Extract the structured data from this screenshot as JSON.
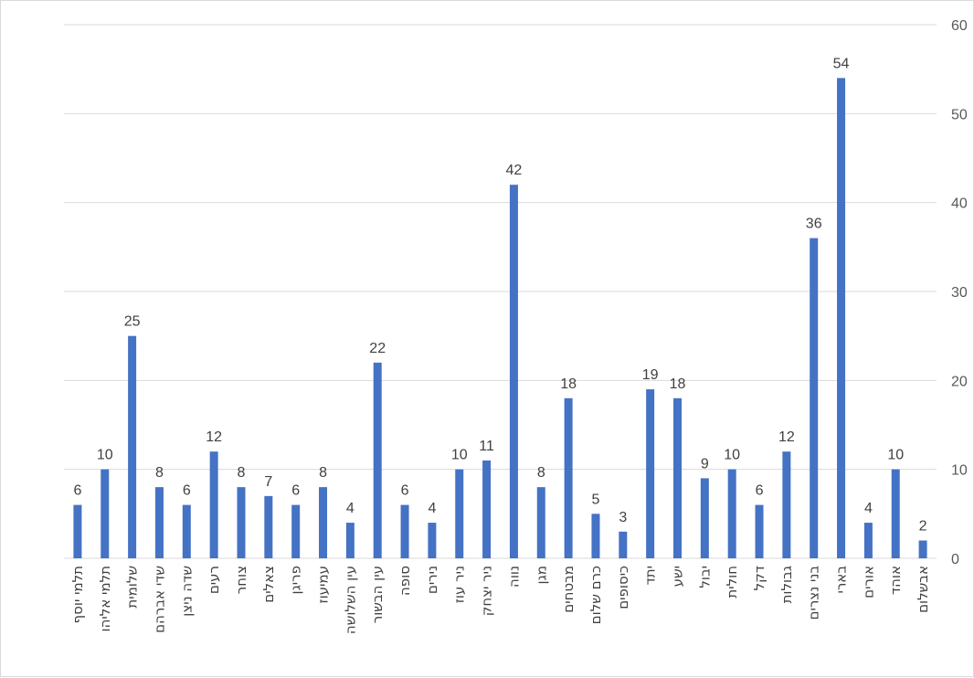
{
  "chart_data": {
    "type": "bar",
    "title": "",
    "xlabel": "",
    "ylabel": "",
    "ylim": [
      0,
      60
    ],
    "yticks": [
      0,
      10,
      20,
      30,
      40,
      50,
      60
    ],
    "y_axis_side": "right",
    "grid": true,
    "legend": "none",
    "colors": {
      "bar": "#4472C4",
      "grid": "#d9d9d9"
    },
    "categories": [
      "תלמי יוסף",
      "תלמי אליהו",
      "שלומית",
      "שדי אברהם",
      "שדה ניצן",
      "רעים",
      "צוחר",
      "צאלים",
      "פריגן",
      "עמיעוז",
      "עין השלושה",
      "עין הבשור",
      "סופה",
      "נירים",
      "ניר עוז",
      "ניר יצחק",
      "נווה",
      "מגן",
      "מבטחים",
      "כרם שלום",
      "כיסופים",
      "יתד",
      "ישע",
      "יבול",
      "חולית",
      "דקל",
      "גבולות",
      "בני נצרים",
      "בארי",
      "אורים",
      "אוהד",
      "אבשלום"
    ],
    "values": [
      6,
      10,
      25,
      8,
      6,
      12,
      8,
      7,
      6,
      8,
      4,
      22,
      6,
      4,
      10,
      11,
      42,
      8,
      18,
      5,
      3,
      19,
      18,
      9,
      10,
      6,
      12,
      36,
      54,
      4,
      10,
      2
    ]
  }
}
